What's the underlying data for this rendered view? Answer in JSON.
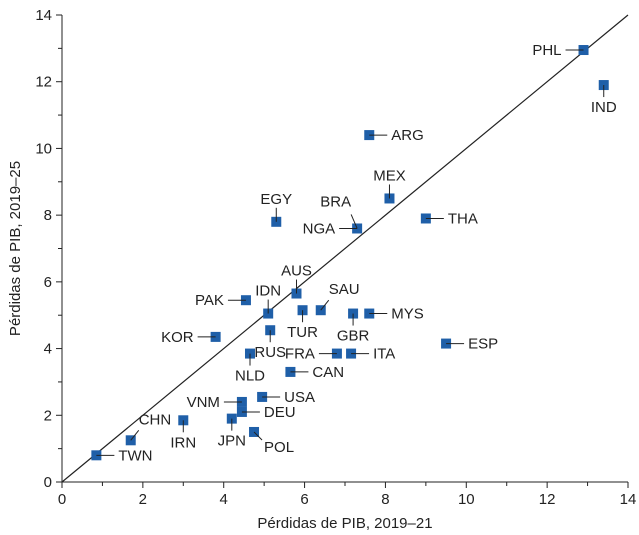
{
  "chart_data": {
    "type": "scatter",
    "title": "",
    "xlabel": "Pérdidas de PIB, 2019–21",
    "ylabel": "Pérdidas de PIB, 2019–25",
    "xlim": [
      0,
      14
    ],
    "ylim": [
      0,
      14
    ],
    "x_ticks": [
      "0",
      "2",
      "4",
      "6",
      "8",
      "10",
      "12",
      "14"
    ],
    "y_ticks": [
      "0",
      "2",
      "4",
      "6",
      "8",
      "10",
      "12",
      "14"
    ],
    "reference_line": "45-degree",
    "marker_color": "#1f5fa8",
    "points": [
      {
        "label": "PHL",
        "x": 12.9,
        "y": 12.95,
        "anchor": "left"
      },
      {
        "label": "IND",
        "x": 13.4,
        "y": 11.9,
        "anchor": "below"
      },
      {
        "label": "ARG",
        "x": 7.6,
        "y": 10.4,
        "anchor": "right"
      },
      {
        "label": "MEX",
        "x": 8.1,
        "y": 8.5,
        "anchor": "above"
      },
      {
        "label": "BRA",
        "x": 7.3,
        "y": 7.6,
        "anchor": "above-left"
      },
      {
        "label": "NGA",
        "x": 7.3,
        "y": 7.6,
        "anchor": "left"
      },
      {
        "label": "THA",
        "x": 9.0,
        "y": 7.9,
        "anchor": "right"
      },
      {
        "label": "EGY",
        "x": 5.3,
        "y": 7.8,
        "anchor": "above"
      },
      {
        "label": "AUS",
        "x": 5.8,
        "y": 5.65,
        "anchor": "above"
      },
      {
        "label": "PAK",
        "x": 4.55,
        "y": 5.45,
        "anchor": "left"
      },
      {
        "label": "IDN",
        "x": 5.1,
        "y": 5.05,
        "anchor": "above"
      },
      {
        "label": "SAU",
        "x": 6.4,
        "y": 5.15,
        "anchor": "above-right"
      },
      {
        "label": "TUR",
        "x": 5.95,
        "y": 5.15,
        "anchor": "below"
      },
      {
        "label": "GBR",
        "x": 7.2,
        "y": 5.05,
        "anchor": "below"
      },
      {
        "label": "MYS",
        "x": 7.6,
        "y": 5.05,
        "anchor": "right"
      },
      {
        "label": "KOR",
        "x": 3.8,
        "y": 4.35,
        "anchor": "left"
      },
      {
        "label": "RUS",
        "x": 5.15,
        "y": 4.55,
        "anchor": "below"
      },
      {
        "label": "NLD",
        "x": 4.65,
        "y": 3.85,
        "anchor": "below"
      },
      {
        "label": "ESP",
        "x": 9.5,
        "y": 4.15,
        "anchor": "right"
      },
      {
        "label": "FRA",
        "x": 6.8,
        "y": 3.85,
        "anchor": "left"
      },
      {
        "label": "ITA",
        "x": 7.15,
        "y": 3.85,
        "anchor": "right"
      },
      {
        "label": "CAN",
        "x": 5.65,
        "y": 3.3,
        "anchor": "right"
      },
      {
        "label": "USA",
        "x": 4.95,
        "y": 2.55,
        "anchor": "right"
      },
      {
        "label": "VNM",
        "x": 4.45,
        "y": 2.4,
        "anchor": "left"
      },
      {
        "label": "DEU",
        "x": 4.45,
        "y": 2.1,
        "anchor": "right"
      },
      {
        "label": "JPN",
        "x": 4.2,
        "y": 1.9,
        "anchor": "below"
      },
      {
        "label": "POL",
        "x": 4.75,
        "y": 1.5,
        "anchor": "below-right"
      },
      {
        "label": "IRN",
        "x": 3.0,
        "y": 1.85,
        "anchor": "below"
      },
      {
        "label": "CHN",
        "x": 1.7,
        "y": 1.25,
        "anchor": "above-right"
      },
      {
        "label": "TWN",
        "x": 0.85,
        "y": 0.8,
        "anchor": "right"
      }
    ]
  }
}
